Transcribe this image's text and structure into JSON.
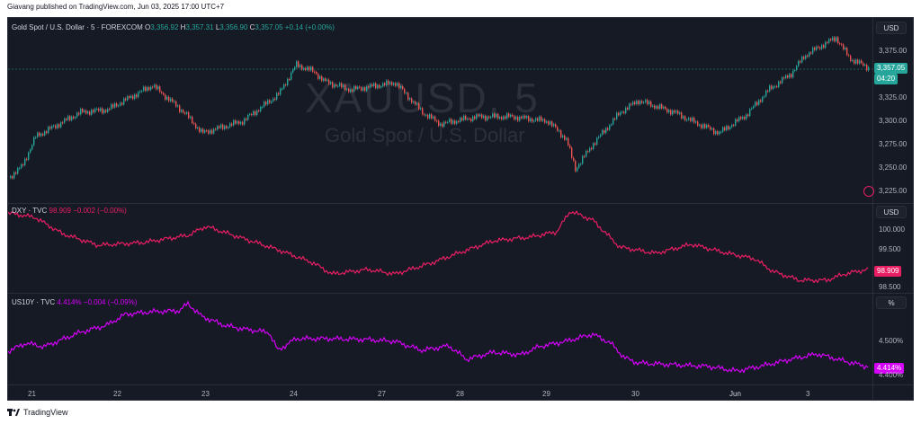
{
  "header": {
    "publisher_text": "Giavang published on TradingView.com, Jun 03, 2025 17:00 UTC+7"
  },
  "watermark": {
    "symbol": "XAUUSD, 5",
    "description": "Gold Spot / U.S. Dollar"
  },
  "panes": {
    "gold": {
      "title": "Gold Spot / U.S. Dollar · 5 · FOREXCOM",
      "o_label": "O",
      "o_value": "3,356.92",
      "h_label": "H",
      "h_value": "3,357.31",
      "l_label": "L",
      "l_value": "3,356.90",
      "c_label": "C",
      "c_value": "3,357.05",
      "change": "+0.14 (+0.00%)",
      "unit": "USD",
      "ticks": [
        "3,375.00",
        "3,350.00",
        "3,325.00",
        "3,300.00",
        "3,275.00",
        "3,250.00",
        "3,225.00"
      ],
      "price_badge": "3,357.05",
      "countdown_badge": "04:20",
      "color_up": "#26a69a",
      "color_down": "#ef5350"
    },
    "dxy": {
      "title": "DXY · TVC",
      "value": "98.909",
      "change": "−0.002 (−0.00%)",
      "unit": "USD",
      "ticks": [
        "100.000",
        "99.500",
        "98.500"
      ],
      "price_badge": "98.909",
      "color": "#e91e63"
    },
    "us10y": {
      "title": "US10Y · TVC",
      "value": "4.414%",
      "change": "−0.004 (−0.09%)",
      "unit": "%",
      "ticks": [
        "4.500%",
        "4.400%"
      ],
      "price_badge": "4.414%",
      "color": "#d500f9"
    }
  },
  "x_axis": {
    "labels": [
      "21",
      "22",
      "23",
      "24",
      "27",
      "28",
      "29",
      "30",
      "Jun",
      "3"
    ]
  },
  "footer": {
    "brand": "TradingView"
  }
}
